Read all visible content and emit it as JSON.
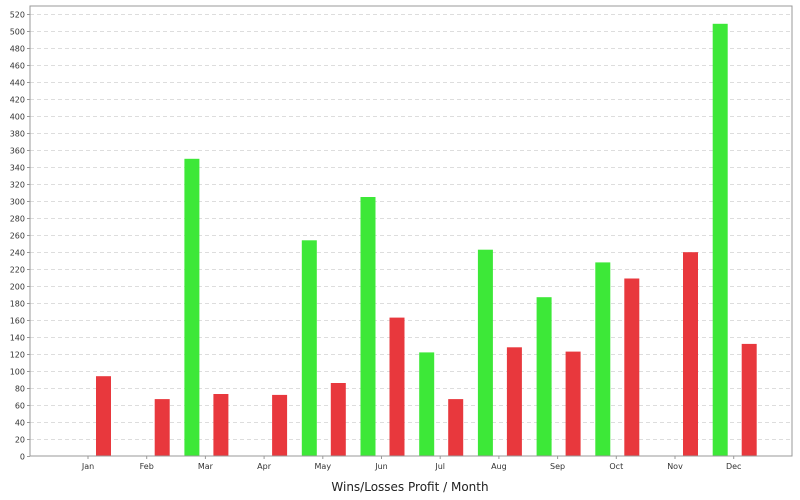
{
  "chart_data": {
    "type": "bar",
    "title": "Wins/Losses Profit / Month",
    "categories": [
      "Jan",
      "Feb",
      "Mar",
      "Apr",
      "May",
      "Jun",
      "Jul",
      "Aug",
      "Sep",
      "Oct",
      "Nov",
      "Dec"
    ],
    "series": [
      {
        "color": "#3de838",
        "values": [
          0,
          0,
          350,
          0,
          254,
          305,
          122,
          243,
          187,
          228,
          0,
          509
        ]
      },
      {
        "color": "#e8383d",
        "values": [
          94,
          67,
          73,
          72,
          86,
          163,
          67,
          128,
          123,
          209,
          240,
          132
        ]
      }
    ],
    "ylim": [
      0,
      530
    ],
    "yticks": [
      0,
      20,
      40,
      60,
      80,
      100,
      120,
      140,
      160,
      180,
      200,
      220,
      240,
      260,
      280,
      300,
      320,
      340,
      360,
      380,
      400,
      420,
      440,
      460,
      480,
      500,
      520
    ],
    "grid": true,
    "grid_color": "#dddddd",
    "frame_color": "#999999"
  }
}
